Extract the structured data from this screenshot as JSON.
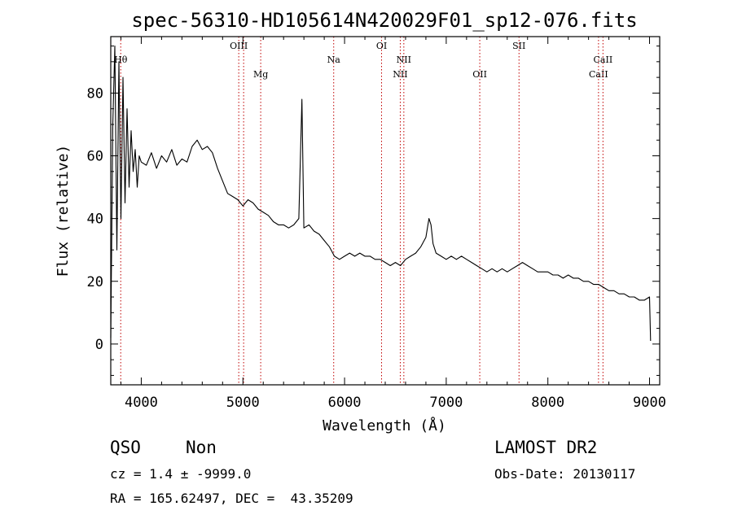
{
  "chart_data": {
    "type": "line",
    "title": "spec-56310-HD105614N420029F01_sp12-076.fits",
    "xlabel": "Wavelength (Å)",
    "ylabel": "Flux (relative)",
    "xlim": [
      3700,
      9100
    ],
    "ylim": [
      -13,
      98
    ],
    "xticks": [
      4000,
      5000,
      6000,
      7000,
      8000,
      9000
    ],
    "yticks": [
      0,
      20,
      40,
      60,
      80
    ],
    "grid": false,
    "series": [
      {
        "color": "#000000",
        "x": [
          3700,
          3720,
          3740,
          3760,
          3780,
          3800,
          3820,
          3840,
          3860,
          3880,
          3900,
          3920,
          3940,
          3960,
          3980,
          4000,
          4050,
          4100,
          4150,
          4200,
          4250,
          4300,
          4350,
          4400,
          4450,
          4500,
          4550,
          4600,
          4650,
          4700,
          4750,
          4800,
          4850,
          4900,
          4950,
          5000,
          5050,
          5100,
          5150,
          5200,
          5250,
          5300,
          5350,
          5400,
          5450,
          5500,
          5550,
          5580,
          5600,
          5650,
          5700,
          5750,
          5800,
          5850,
          5900,
          5950,
          6000,
          6050,
          6100,
          6150,
          6200,
          6250,
          6300,
          6350,
          6400,
          6450,
          6500,
          6550,
          6600,
          6650,
          6700,
          6750,
          6800,
          6830,
          6850,
          6870,
          6900,
          6950,
          7000,
          7050,
          7100,
          7150,
          7200,
          7250,
          7300,
          7350,
          7400,
          7450,
          7500,
          7550,
          7600,
          7650,
          7700,
          7750,
          7800,
          7850,
          7900,
          7950,
          8000,
          8050,
          8100,
          8150,
          8200,
          8250,
          8300,
          8350,
          8400,
          8450,
          8500,
          8550,
          8600,
          8650,
          8700,
          8750,
          8800,
          8850,
          8900,
          8950,
          9000,
          9010
        ],
        "y": [
          2,
          70,
          95,
          30,
          90,
          40,
          85,
          45,
          75,
          50,
          68,
          55,
          62,
          50,
          60,
          58,
          57,
          61,
          56,
          60,
          58,
          62,
          57,
          59,
          58,
          63,
          65,
          62,
          63,
          61,
          56,
          52,
          48,
          47,
          46,
          44,
          46,
          45,
          43,
          42,
          41,
          39,
          38,
          38,
          37,
          38,
          40,
          78,
          37,
          38,
          36,
          35,
          33,
          31,
          28,
          27,
          28,
          29,
          28,
          29,
          28,
          28,
          27,
          27,
          26,
          25,
          26,
          25,
          27,
          28,
          29,
          31,
          34,
          40,
          38,
          32,
          29,
          28,
          27,
          28,
          27,
          28,
          27,
          26,
          25,
          24,
          23,
          24,
          23,
          24,
          23,
          24,
          25,
          26,
          25,
          24,
          23,
          23,
          23,
          22,
          22,
          21,
          22,
          21,
          21,
          20,
          20,
          19,
          19,
          18,
          17,
          17,
          16,
          16,
          15,
          15,
          14,
          14,
          15,
          1
        ]
      }
    ],
    "lines": [
      {
        "wavelength": 3798,
        "label": "Hθ",
        "row": 2
      },
      {
        "wavelength": 4959,
        "label": "OIII",
        "row": 1
      },
      {
        "wavelength": 5007,
        "label": "",
        "row": 1
      },
      {
        "wavelength": 5175,
        "label": "Mg",
        "row": 3
      },
      {
        "wavelength": 5893,
        "label": "Na",
        "row": 2
      },
      {
        "wavelength": 6364,
        "label": "OI",
        "row": 1
      },
      {
        "wavelength": 6548,
        "label": "NII",
        "row": 3
      },
      {
        "wavelength": 6583,
        "label": "NII",
        "row": 2
      },
      {
        "wavelength": 7330,
        "label": "OII",
        "row": 3
      },
      {
        "wavelength": 7716,
        "label": "SII",
        "row": 1
      },
      {
        "wavelength": 8498,
        "label": "CaII",
        "row": 3
      },
      {
        "wavelength": 8542,
        "label": "CaII",
        "row": 2
      }
    ],
    "line_color": "#c00000"
  },
  "info": {
    "class": "QSO",
    "subclass": "Non",
    "survey": "LAMOST DR2",
    "cz": "cz = 1.4 ± -9999.0",
    "obs_date": "Obs-Date: 20130117",
    "coords": "RA = 165.62497, DEC =  43.35209"
  }
}
